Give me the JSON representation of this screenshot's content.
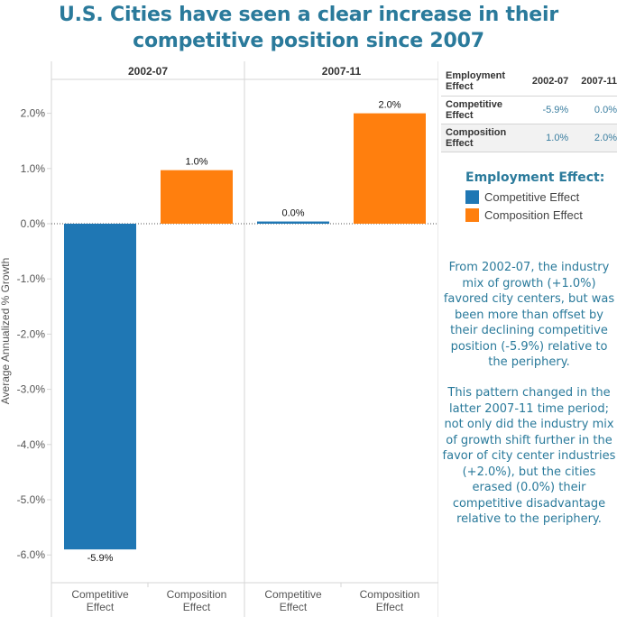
{
  "title": "U.S. Cities have seen a clear increase in their competitive position since 2007",
  "colors": {
    "title": "#2a7a9b",
    "competitive": "#1f77b4",
    "composition": "#ff7f0e",
    "table_value": "#3a7ea0"
  },
  "chart_data": {
    "type": "bar",
    "title": "U.S. Cities have seen a clear increase in their competitive position since 2007",
    "panels": [
      "2002-07",
      "2007-11"
    ],
    "categories": [
      "Competitive Effect",
      "Composition Effect"
    ],
    "category_labels": [
      [
        "Competitive",
        "Effect"
      ],
      [
        "Composition",
        "Effect"
      ]
    ],
    "series": [
      {
        "name": "Competitive Effect",
        "panel_values": {
          "2002-07": -5.9,
          "2007-11": 0.04
        },
        "labels": {
          "2002-07": "-5.9%",
          "2007-11": "0.0%"
        }
      },
      {
        "name": "Composition Effect",
        "panel_values": {
          "2002-07": 0.97,
          "2007-11": 2.0
        },
        "labels": {
          "2002-07": "1.0%",
          "2007-11": "2.0%"
        }
      }
    ],
    "xlabel": "",
    "ylabel": "Average Annualized % Growth",
    "ylim": [
      -6.5,
      2.6
    ],
    "yticks": [
      2.0,
      1.0,
      0.0,
      -1.0,
      -2.0,
      -3.0,
      -4.0,
      -5.0,
      -6.0
    ],
    "ytick_labels": [
      "2.0%",
      "1.0%",
      "0.0%",
      "-1.0%",
      "-2.0%",
      "-3.0%",
      "-4.0%",
      "-5.0%",
      "-6.0%"
    ],
    "zero_line": "dotted",
    "grid": false,
    "legend_position": "right"
  },
  "table": {
    "header": [
      "Employment Effect",
      "2002-07",
      "2007-11"
    ],
    "header_first_lines": [
      "Employment",
      "Effect"
    ],
    "rows": [
      {
        "label_lines": [
          "Competitive",
          "Effect"
        ],
        "values": [
          "-5.9%",
          "0.0%"
        ]
      },
      {
        "label_lines": [
          "Composition",
          "Effect"
        ],
        "values": [
          "1.0%",
          "2.0%"
        ]
      }
    ]
  },
  "legend": {
    "title": "Employment Effect:",
    "items": [
      {
        "label": "Competitive Effect",
        "color": "#1f77b4"
      },
      {
        "label": "Composition Effect",
        "color": "#ff7f0e"
      }
    ]
  },
  "notes": [
    "From 2002-07, the industry mix of  growth (+1.0%) favored city centers, but was been more than offset by their declining competitive position (-5.9%) relative to the periphery.",
    "This pattern changed in the latter 2007-11 time period; not only did the industry mix of growth shift further in the favor of city center industries (+2.0%), but the cities erased (0.0%) their competitive disadvantage relative to the periphery."
  ]
}
